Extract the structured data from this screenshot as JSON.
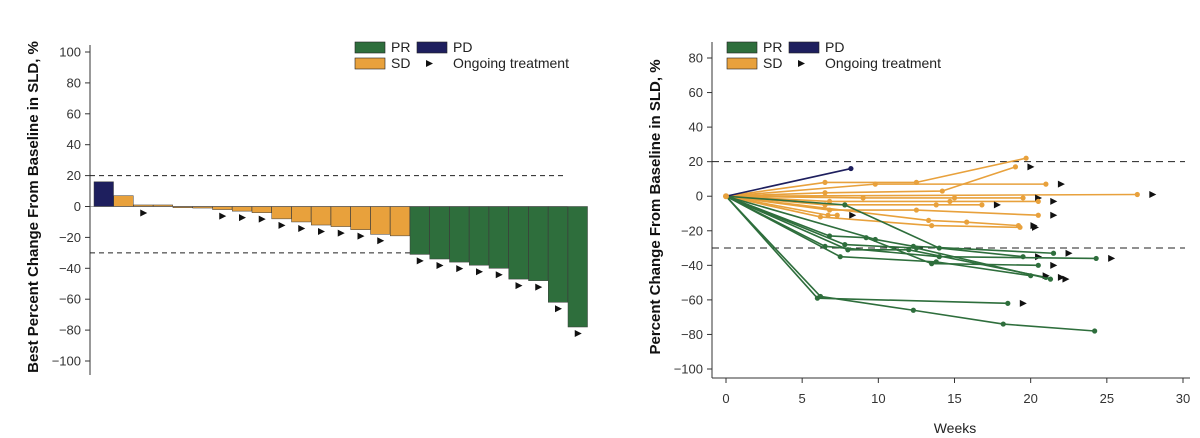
{
  "colors": {
    "PR": "#2e6e3c",
    "PD": "#1e1f5e",
    "SD": "#e8a13c",
    "axis": "#333333"
  },
  "legend": {
    "pr": "PR",
    "pd": "PD",
    "sd": "SD",
    "ongoing": "Ongoing treatment",
    "arrow_icon": "right-triangle-icon"
  },
  "chart_data": [
    {
      "type": "bar",
      "ylabel": "Best Percent Change From Baseline in SLD, %",
      "xlabel": "",
      "ylim": [
        -100,
        100
      ],
      "yticks": [
        100,
        80,
        60,
        40,
        20,
        0,
        -20,
        -40,
        -60,
        -80,
        -100
      ],
      "reference_lines": [
        20,
        -30
      ],
      "bars": [
        {
          "value": 16,
          "response": "PD",
          "ongoing": false
        },
        {
          "value": 7,
          "response": "SD",
          "ongoing": false
        },
        {
          "value": 1,
          "response": "SD",
          "ongoing": true
        },
        {
          "value": 1,
          "response": "SD",
          "ongoing": false
        },
        {
          "value": 0,
          "response": "SD",
          "ongoing": false
        },
        {
          "value": -1,
          "response": "SD",
          "ongoing": false
        },
        {
          "value": -2,
          "response": "SD",
          "ongoing": true
        },
        {
          "value": -3,
          "response": "SD",
          "ongoing": true
        },
        {
          "value": -4,
          "response": "SD",
          "ongoing": true
        },
        {
          "value": -8,
          "response": "SD",
          "ongoing": true
        },
        {
          "value": -10,
          "response": "SD",
          "ongoing": true
        },
        {
          "value": -12,
          "response": "SD",
          "ongoing": true
        },
        {
          "value": -13,
          "response": "SD",
          "ongoing": true
        },
        {
          "value": -15,
          "response": "SD",
          "ongoing": true
        },
        {
          "value": -18,
          "response": "SD",
          "ongoing": true
        },
        {
          "value": -19,
          "response": "SD",
          "ongoing": false
        },
        {
          "value": -31,
          "response": "PR",
          "ongoing": true
        },
        {
          "value": -34,
          "response": "PR",
          "ongoing": true
        },
        {
          "value": -36,
          "response": "PR",
          "ongoing": true
        },
        {
          "value": -38,
          "response": "PR",
          "ongoing": true
        },
        {
          "value": -40,
          "response": "PR",
          "ongoing": true
        },
        {
          "value": -47,
          "response": "PR",
          "ongoing": true
        },
        {
          "value": -48,
          "response": "PR",
          "ongoing": true
        },
        {
          "value": -62,
          "response": "PR",
          "ongoing": true
        },
        {
          "value": -78,
          "response": "PR",
          "ongoing": true
        }
      ]
    },
    {
      "type": "line",
      "ylabel": "Percent Change From Baseline in SLD, %",
      "xlabel": "Weeks",
      "xlim": [
        0,
        30
      ],
      "ylim": [
        -100,
        80
      ],
      "xticks": [
        0,
        5,
        10,
        15,
        20,
        25,
        30
      ],
      "yticks": [
        80,
        60,
        40,
        20,
        0,
        -20,
        -40,
        -60,
        -80,
        -100
      ],
      "reference_lines": [
        20,
        -30
      ],
      "series": [
        {
          "response": "PD",
          "ongoing": false,
          "points": [
            [
              0,
              0
            ],
            [
              8.2,
              16
            ]
          ]
        },
        {
          "response": "SD",
          "ongoing": false,
          "points": [
            [
              0,
              0
            ],
            [
              6.5,
              8
            ],
            [
              12.5,
              8
            ],
            [
              19.7,
              22
            ]
          ]
        },
        {
          "response": "SD",
          "ongoing": true,
          "points": [
            [
              0,
              0
            ],
            [
              6.5,
              2
            ],
            [
              14.2,
              3
            ],
            [
              19,
              17
            ]
          ]
        },
        {
          "response": "SD",
          "ongoing": true,
          "points": [
            [
              0,
              0
            ],
            [
              9.8,
              7
            ],
            [
              21,
              7
            ]
          ]
        },
        {
          "response": "SD",
          "ongoing": true,
          "points": [
            [
              0,
              0
            ],
            [
              27,
              1
            ]
          ]
        },
        {
          "response": "SD",
          "ongoing": true,
          "points": [
            [
              0,
              0
            ],
            [
              9,
              -1
            ],
            [
              15,
              -1
            ],
            [
              19.5,
              -1
            ]
          ]
        },
        {
          "response": "SD",
          "ongoing": true,
          "points": [
            [
              0,
              0
            ],
            [
              6.8,
              -3
            ],
            [
              14.7,
              -3
            ],
            [
              20.5,
              -3
            ]
          ]
        },
        {
          "response": "SD",
          "ongoing": true,
          "points": [
            [
              0,
              0
            ],
            [
              6.5,
              -5
            ],
            [
              13.8,
              -5
            ],
            [
              16.8,
              -5
            ]
          ]
        },
        {
          "response": "SD",
          "ongoing": true,
          "points": [
            [
              0,
              0
            ],
            [
              6.8,
              -8
            ],
            [
              12.5,
              -8
            ],
            [
              20.5,
              -11
            ]
          ]
        },
        {
          "response": "SD",
          "ongoing": true,
          "points": [
            [
              0,
              0
            ],
            [
              6.7,
              -11
            ],
            [
              7.3,
              -11
            ]
          ]
        },
        {
          "response": "SD",
          "ongoing": true,
          "points": [
            [
              0,
              0
            ],
            [
              13.3,
              -14
            ],
            [
              15.8,
              -15
            ],
            [
              19.2,
              -17
            ]
          ]
        },
        {
          "response": "SD",
          "ongoing": true,
          "points": [
            [
              0,
              0
            ],
            [
              6.2,
              -12
            ],
            [
              13.5,
              -17
            ],
            [
              19.3,
              -18
            ]
          ]
        },
        {
          "response": "PR",
          "ongoing": true,
          "points": [
            [
              0,
              0
            ],
            [
              6,
              -59
            ],
            [
              18.5,
              -62
            ]
          ]
        },
        {
          "response": "PR",
          "ongoing": false,
          "points": [
            [
              0,
              0
            ],
            [
              6.2,
              -58
            ],
            [
              12.3,
              -66
            ],
            [
              18.2,
              -74
            ],
            [
              24.2,
              -78
            ]
          ]
        },
        {
          "response": "PR",
          "ongoing": true,
          "points": [
            [
              0,
              0
            ],
            [
              7.8,
              -5
            ],
            [
              14,
              -30
            ],
            [
              19.5,
              -35
            ]
          ]
        },
        {
          "response": "PR",
          "ongoing": true,
          "points": [
            [
              0,
              0
            ],
            [
              6.8,
              -23
            ],
            [
              9.2,
              -24
            ],
            [
              13.5,
              -39
            ],
            [
              20.5,
              -40
            ]
          ]
        },
        {
          "response": "PR",
          "ongoing": true,
          "points": [
            [
              0,
              0
            ],
            [
              6.5,
              -29
            ],
            [
              14,
              -35
            ],
            [
              24.3,
              -36
            ]
          ]
        },
        {
          "response": "PR",
          "ongoing": true,
          "points": [
            [
              0,
              0
            ],
            [
              8,
              -31
            ],
            [
              12,
              -31
            ],
            [
              21,
              -47
            ]
          ]
        },
        {
          "response": "PR",
          "ongoing": true,
          "points": [
            [
              0,
              0
            ],
            [
              7.5,
              -35
            ],
            [
              13.8,
              -38
            ],
            [
              20,
              -46
            ]
          ]
        },
        {
          "response": "PR",
          "ongoing": true,
          "points": [
            [
              0,
              0
            ],
            [
              7.8,
              -28
            ],
            [
              12.5,
              -30
            ],
            [
              21.3,
              -48
            ]
          ]
        },
        {
          "response": "PR",
          "ongoing": true,
          "points": [
            [
              0,
              0
            ],
            [
              9.8,
              -25
            ],
            [
              12.3,
              -29
            ],
            [
              21.5,
              -33
            ]
          ]
        }
      ]
    }
  ]
}
